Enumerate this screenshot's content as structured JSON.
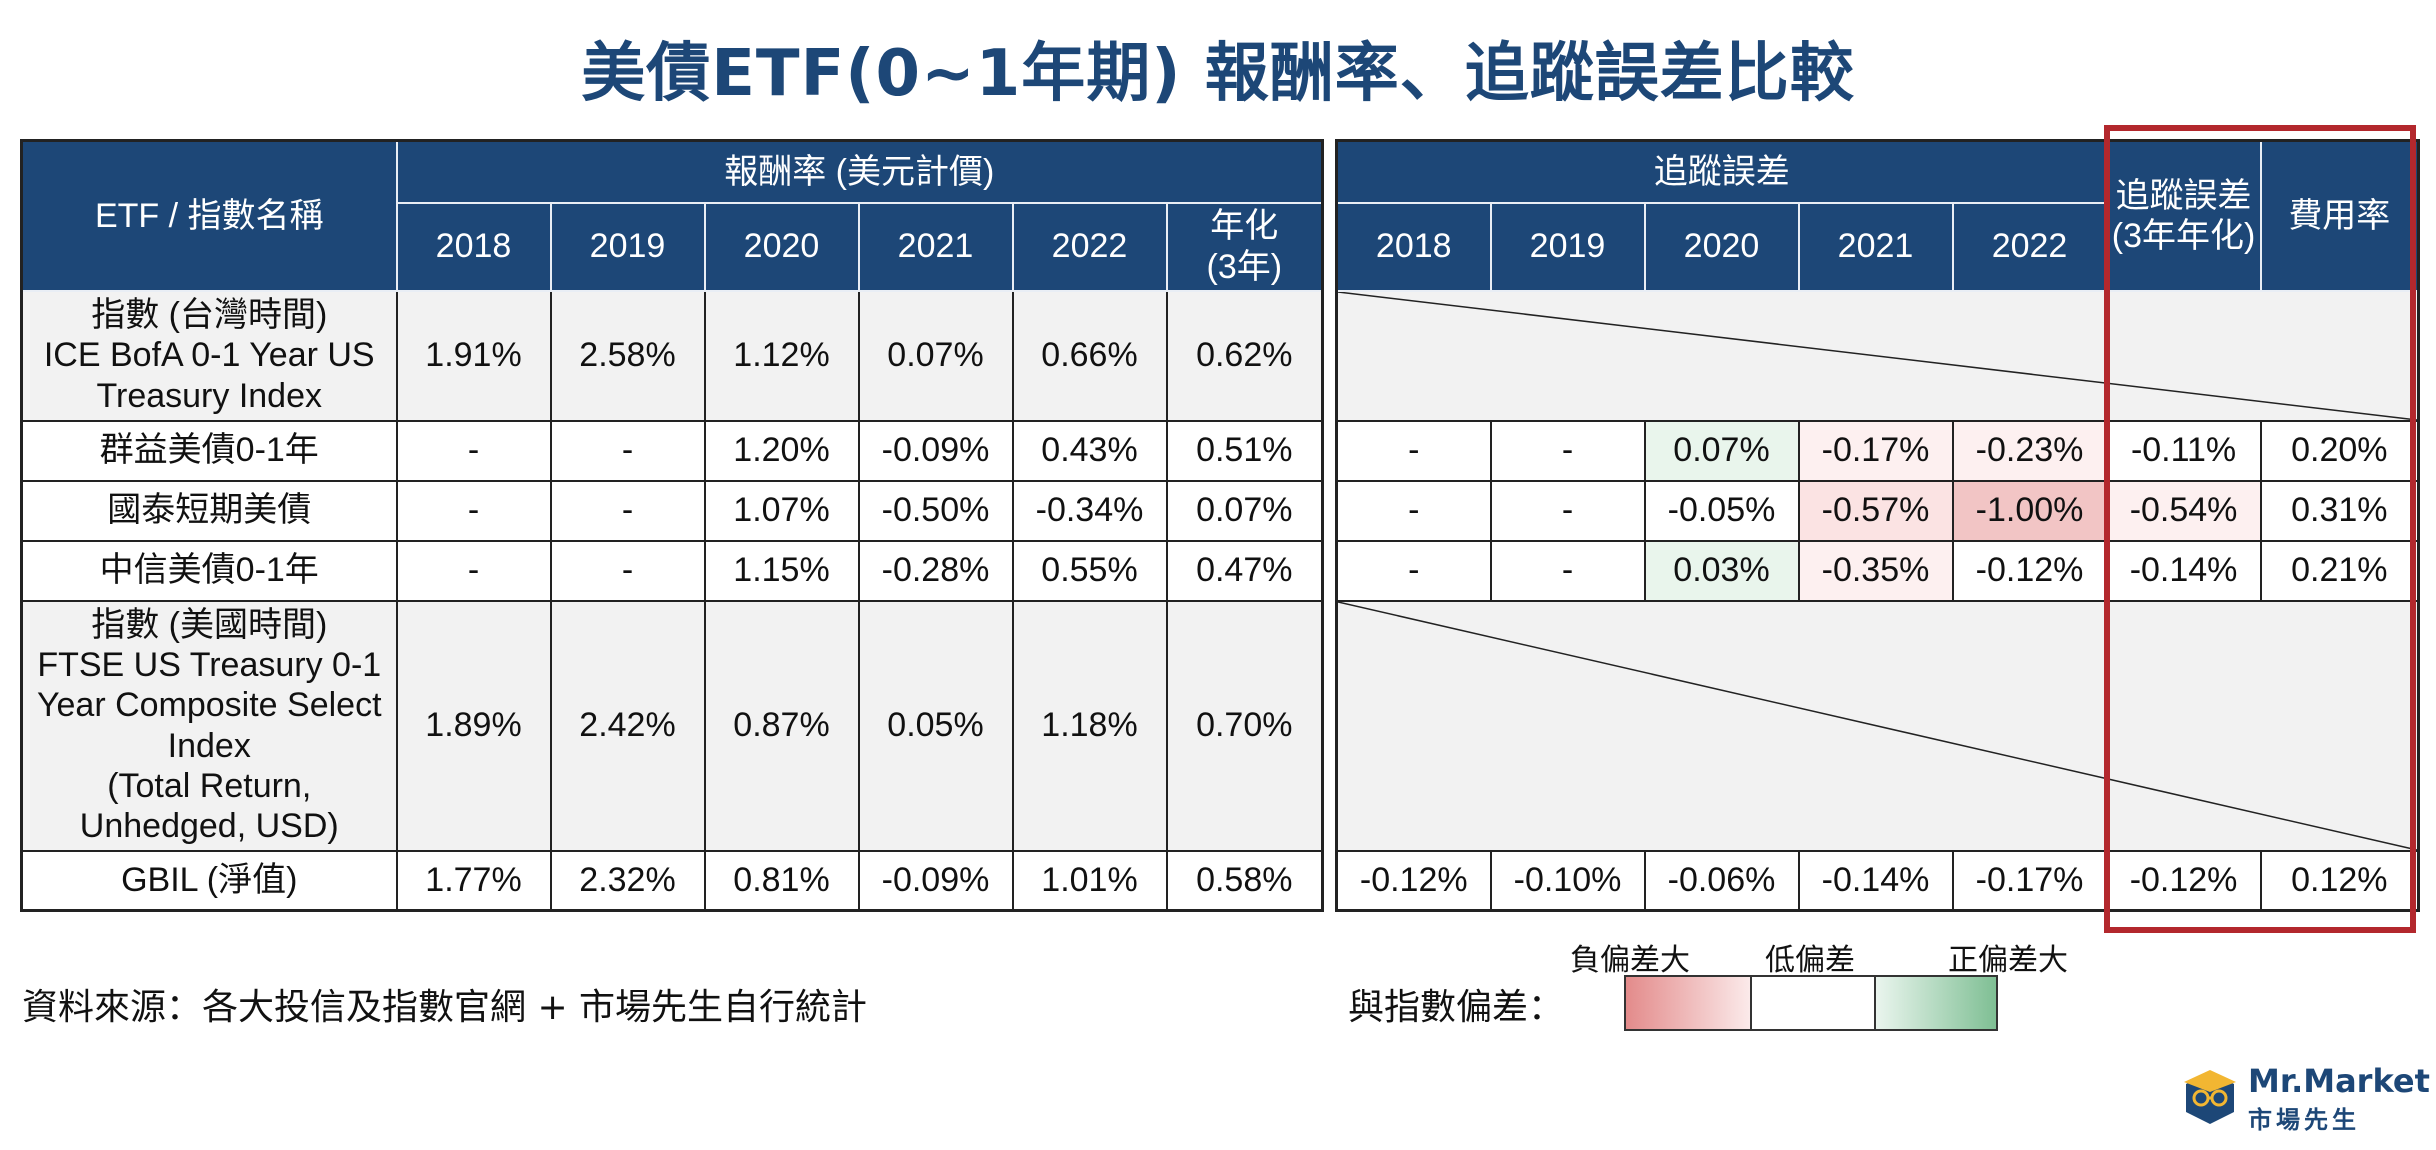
{
  "title": "美債ETF(0~1年期) 報酬率、追蹤誤差比較",
  "headers": {
    "name": "ETF / 指數名稱",
    "returns_group": "報酬率 (美元計價)",
    "tracking_group": "追蹤誤差",
    "years": [
      "2018",
      "2019",
      "2020",
      "2021",
      "2022"
    ],
    "annualized": [
      "年化",
      "(3年)"
    ],
    "tracking_annualized": [
      "追蹤誤差",
      "(3年年化)"
    ],
    "expense": "費用率"
  },
  "rows": [
    {
      "name": [
        "指數 (台灣時間)",
        "ICE BofA 0-1 Year US",
        "Treasury Index"
      ],
      "returns": [
        "1.91%",
        "2.58%",
        "1.12%",
        "0.07%",
        "0.66%",
        "0.62%"
      ],
      "tracking": null
    },
    {
      "name": [
        "群益美債0-1年"
      ],
      "returns": [
        "-",
        "-",
        "1.20%",
        "-0.09%",
        "0.43%",
        "0.51%"
      ],
      "tracking": [
        "-",
        "-",
        "0.07%",
        "-0.17%",
        "-0.23%",
        "-0.11%"
      ],
      "expense": "0.20%"
    },
    {
      "name": [
        "國泰短期美債"
      ],
      "returns": [
        "-",
        "-",
        "1.07%",
        "-0.50%",
        "-0.34%",
        "0.07%"
      ],
      "tracking": [
        "-",
        "-",
        "-0.05%",
        "-0.57%",
        "-1.00%",
        "-0.54%"
      ],
      "expense": "0.31%"
    },
    {
      "name": [
        "中信美債0-1年"
      ],
      "returns": [
        "-",
        "-",
        "1.15%",
        "-0.28%",
        "0.55%",
        "0.47%"
      ],
      "tracking": [
        "-",
        "-",
        "0.03%",
        "-0.35%",
        "-0.12%",
        "-0.14%"
      ],
      "expense": "0.21%"
    },
    {
      "name": [
        "指數 (美國時間)",
        "FTSE US Treasury 0-1",
        "Year Composite Select",
        "Index",
        "(Total Return,",
        "Unhedged, USD)"
      ],
      "returns": [
        "1.89%",
        "2.42%",
        "0.87%",
        "0.05%",
        "1.18%",
        "0.70%"
      ],
      "tracking": null
    },
    {
      "name": [
        "GBIL (淨值)"
      ],
      "returns": [
        "1.77%",
        "2.32%",
        "0.81%",
        "-0.09%",
        "1.01%",
        "0.58%"
      ],
      "tracking": [
        "-0.12%",
        "-0.10%",
        "-0.06%",
        "-0.14%",
        "-0.17%",
        "-0.12%"
      ],
      "expense": "0.12%"
    }
  ],
  "footer": {
    "source": "資料來源：各大投信及指數官網 + 市場先生自行統計",
    "legend_label": "與指數偏差：",
    "legend_neg": "負偏差大",
    "legend_low": "低偏差",
    "legend_pos": "正偏差大",
    "colors": {
      "negative": "#e38b8b",
      "neutral": "#ffffff",
      "positive": "#7fbf94",
      "header": "#1d4777",
      "highlight_box": "#b3282d"
    }
  },
  "logo": {
    "name": "Mr.Market",
    "subtitle": "市場先生"
  }
}
